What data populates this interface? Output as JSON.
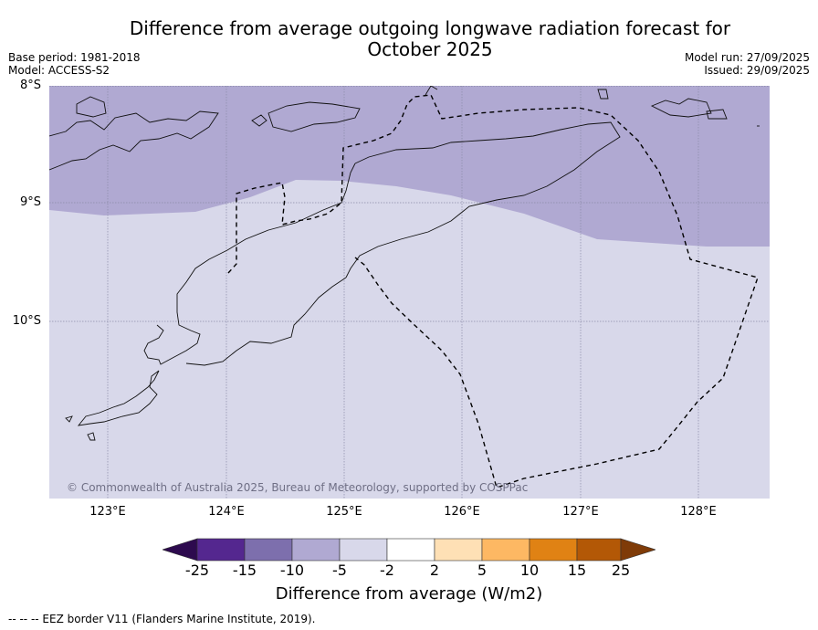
{
  "title_line1": "Difference from average outgoing longwave radiation forecast for",
  "title_line2": "October 2025",
  "meta_left": {
    "base_period": "Base period: 1981-2018",
    "model": "Model: ACCESS-S2"
  },
  "meta_right": {
    "model_run": "Model run: 27/09/2025",
    "issued": "Issued: 29/09/2025"
  },
  "lat_labels": [
    "8°S",
    "9°S",
    "10°S"
  ],
  "lon_labels": [
    "123°E",
    "124°E",
    "125°E",
    "126°E",
    "127°E",
    "128°E"
  ],
  "copyright": "© Commonwealth of Australia 2025, Bureau of Meteorology, supported by COSPPac",
  "colorbar": {
    "ticks": [
      "-25",
      "-15",
      "-10",
      "-5",
      "-2",
      "2",
      "5",
      "10",
      "15",
      "25"
    ],
    "colors": [
      "#2d0a4e",
      "#54278f",
      "#7d6fad",
      "#b0a9d2",
      "#d8d8ea",
      "#ffffff",
      "#fee0b5",
      "#fdb863",
      "#e08214",
      "#b35806",
      "#7f3b08"
    ],
    "title": "Difference from average (W/m2)"
  },
  "map_colors": {
    "band_minus10_minus5": "#b0a9d2",
    "band_minus5_minus2": "#d8d8ea"
  },
  "footnote": "--  --  -- EEZ border V11 (Flanders Marine Institute, 2019)."
}
